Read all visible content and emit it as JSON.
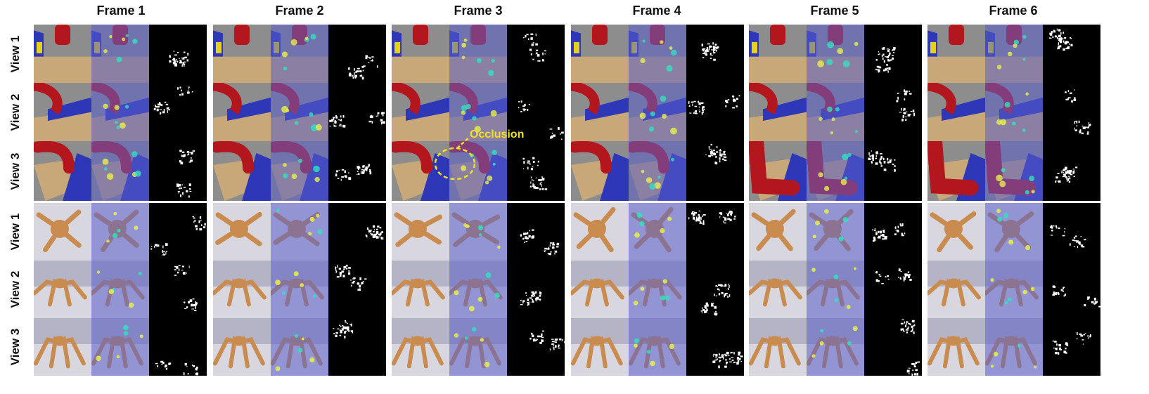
{
  "frames": [
    "Frame 1",
    "Frame 2",
    "Frame 3",
    "Frame 4",
    "Frame 5",
    "Frame 6"
  ],
  "views": [
    "View 1",
    "View 2",
    "View 3"
  ],
  "annotation": {
    "label": "Occlusion",
    "color": "#f2e21d"
  },
  "colors": {
    "robot_red": "#b3161c",
    "table_wood": "#c8a878",
    "blue_wall": "#2e37b8",
    "ant_body": "#c98c4e",
    "overlay_blue": "#5a5fc8",
    "mask_bg": "#000000",
    "mask_fg": "#ffffff"
  },
  "sections": [
    "robot-arm",
    "ant"
  ]
}
